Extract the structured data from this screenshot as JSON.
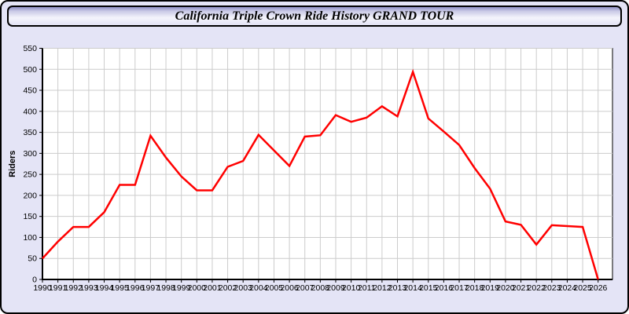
{
  "window": {
    "title": "California Triple Crown Ride History GRAND TOUR",
    "background_hex": "#e4e4f6",
    "titlebar_border_hex": "#000000"
  },
  "chart_data": {
    "type": "line",
    "title": "California Triple Crown Ride History GRAND TOUR",
    "xlabel": "",
    "ylabel": "Riders",
    "ylim": [
      0,
      550
    ],
    "ytick_step": 50,
    "grid": true,
    "grid_color": "#cccccc",
    "plot_bg_hex": "#ffffff",
    "series_color": "#ff0000",
    "legend_position": "none",
    "x": [
      1990,
      1991,
      1992,
      1993,
      1994,
      1995,
      1996,
      1997,
      1998,
      1999,
      2000,
      2001,
      2002,
      2003,
      2004,
      2005,
      2006,
      2007,
      2008,
      2009,
      2010,
      2011,
      2012,
      2013,
      2014,
      2015,
      2016,
      2017,
      2018,
      2019,
      2020,
      2021,
      2022,
      2023,
      2024,
      2025,
      2026
    ],
    "series": [
      {
        "name": "Riders",
        "values": [
          50,
          90,
          125,
          125,
          160,
          225,
          225,
          342,
          290,
          245,
          212,
          212,
          268,
          282,
          344,
          307,
          270,
          340,
          343,
          391,
          375,
          385,
          412,
          388,
          494,
          383,
          352,
          320,
          265,
          216,
          138,
          130,
          83,
          129,
          127,
          125,
          0
        ]
      }
    ]
  }
}
